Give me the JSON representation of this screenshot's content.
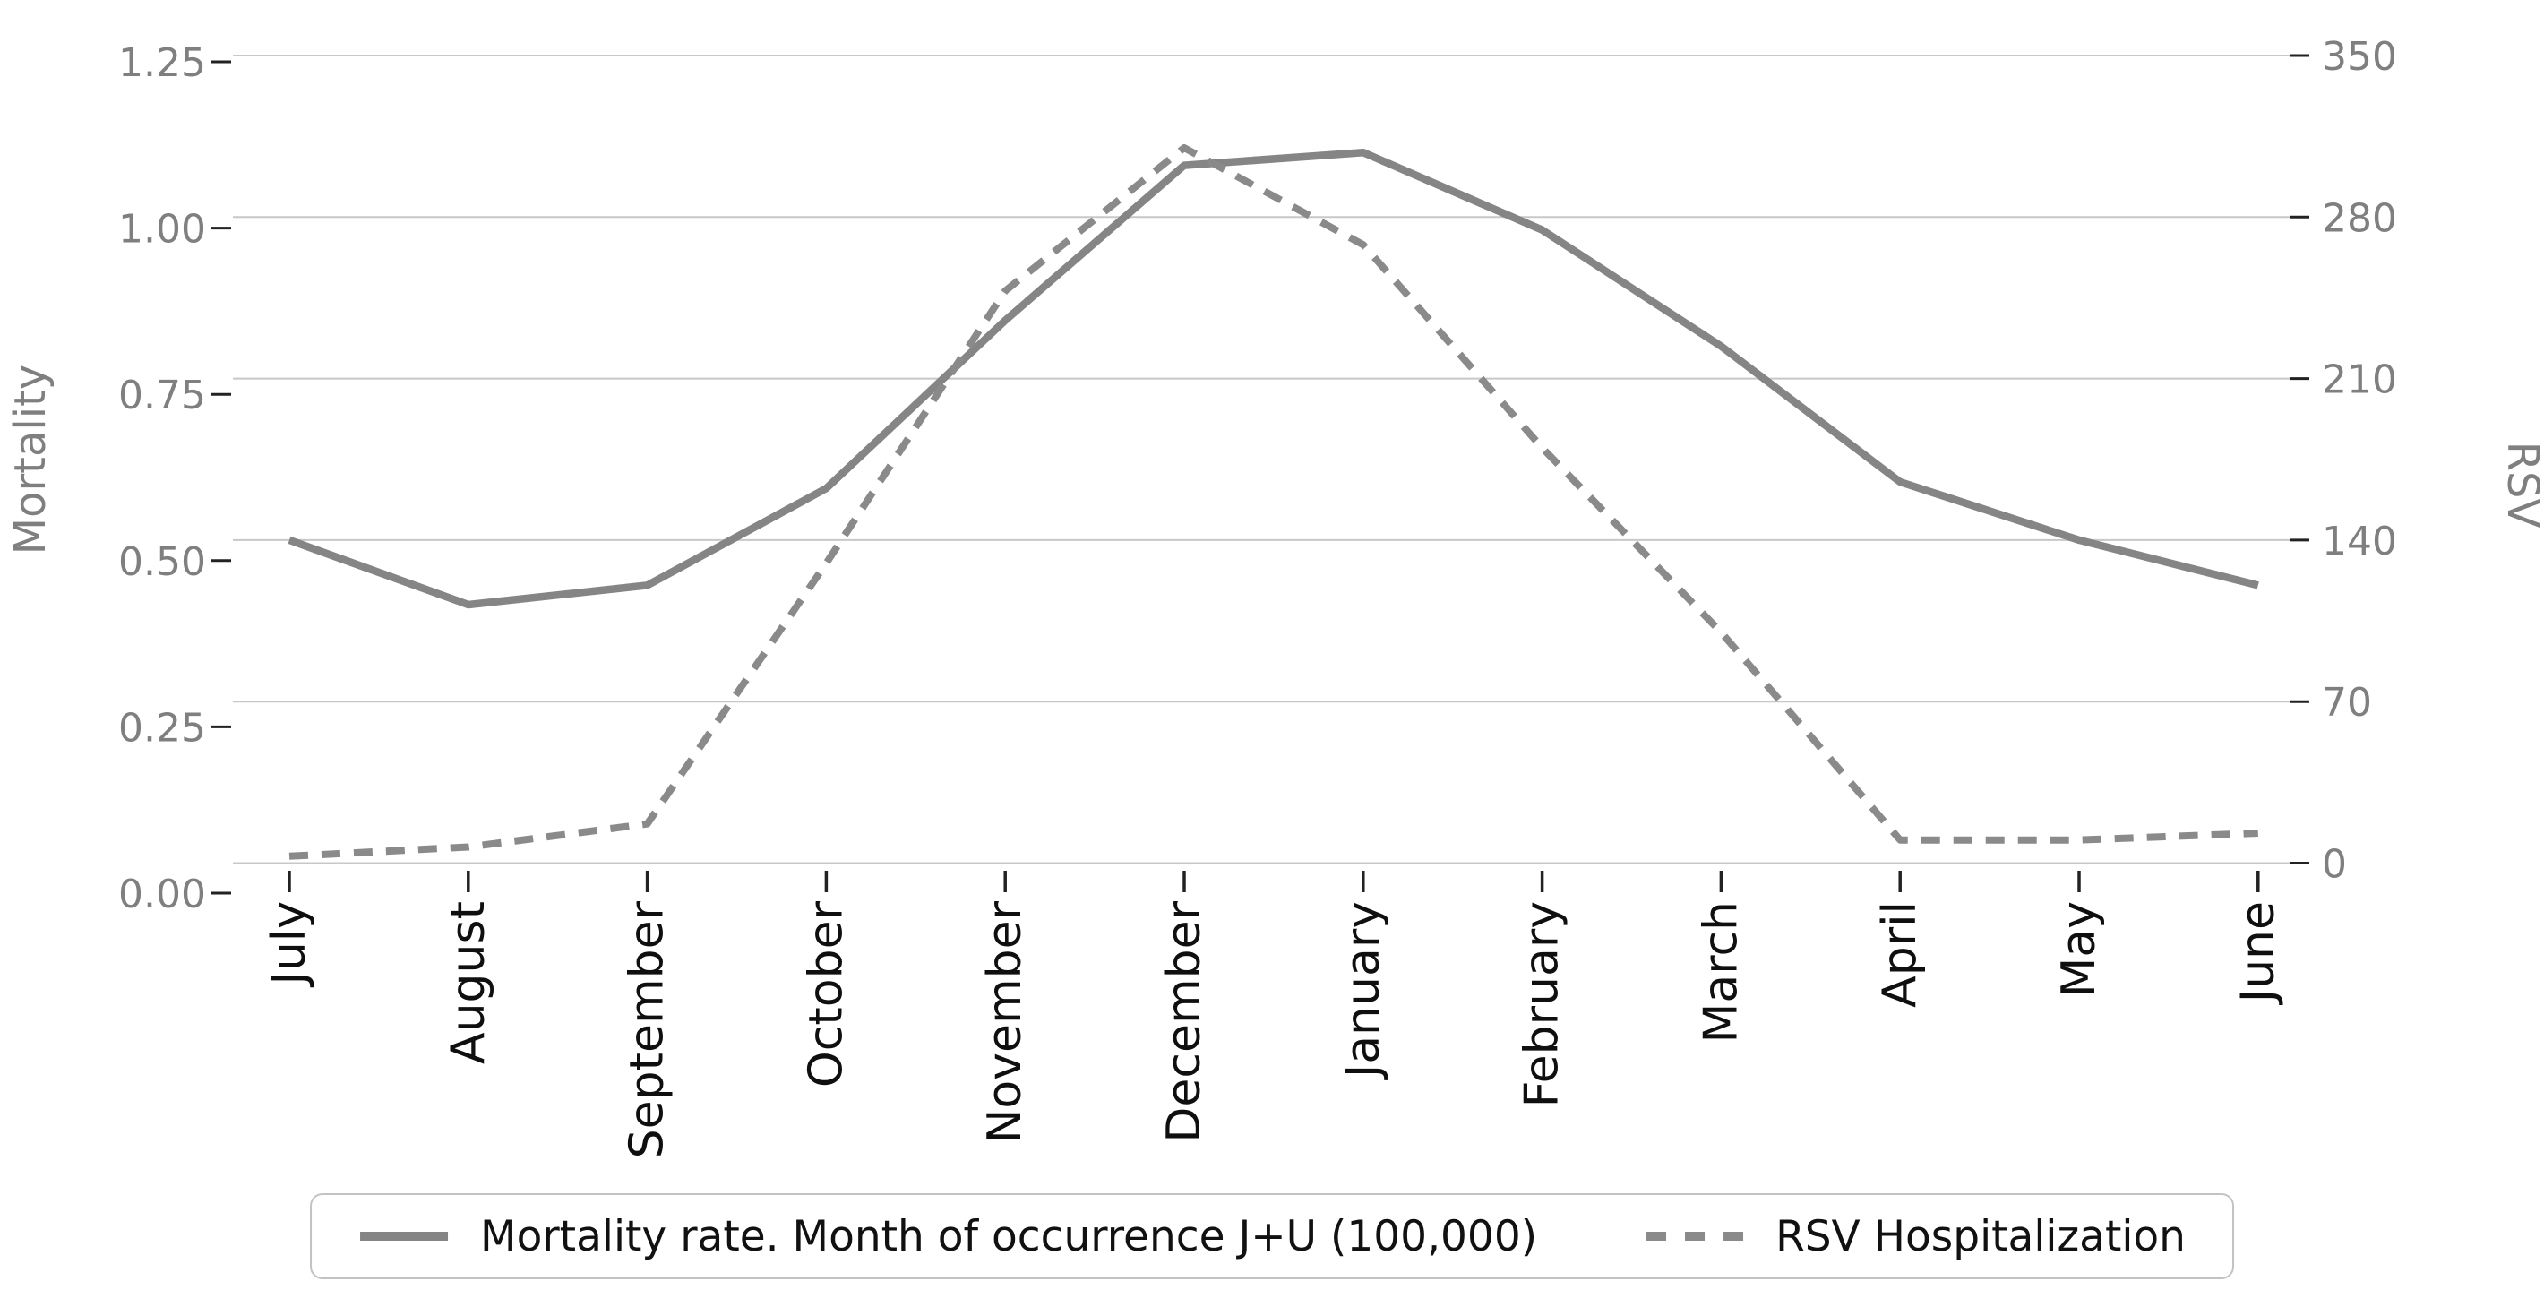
{
  "chart_data": {
    "type": "line",
    "title": "",
    "categories": [
      "July",
      "August",
      "September",
      "October",
      "November",
      "December",
      "January",
      "February",
      "March",
      "April",
      "May",
      "June"
    ],
    "series": [
      {
        "name": "Mortality rate. Month of occurrence J+U (100,000)",
        "axis": "left",
        "line_style": "solid",
        "color": "#858585",
        "values": [
          0.5,
          0.4,
          0.43,
          0.58,
          0.84,
          1.08,
          1.1,
          0.98,
          0.8,
          0.59,
          0.5,
          0.43
        ]
      },
      {
        "name": "RSV Hospitalization",
        "axis": "right",
        "line_style": "dashed",
        "color": "#8a8a8a",
        "values": [
          3,
          7,
          17,
          130,
          248,
          310,
          268,
          180,
          100,
          10,
          10,
          13
        ]
      }
    ],
    "left_axis": {
      "label": "Mortality",
      "tick_labels": [
        "1.25",
        "1.00",
        "0.75",
        "0.50",
        "0.25",
        "0.00"
      ],
      "range": [
        0,
        1.25
      ]
    },
    "right_axis": {
      "label": "RSV",
      "tick_labels": [
        "350",
        "280",
        "210",
        "140",
        "70",
        "0"
      ],
      "range": [
        0,
        350
      ]
    },
    "x_axis": {
      "tick_label_rotation": -90
    },
    "grid": true,
    "legend_position": "bottom"
  },
  "colors": {
    "background": "#ffffff",
    "grid": "#c8c8c8",
    "tick_mark": "#222222",
    "axis_number_text": "#7f7f7f",
    "axis_title_text": "#7f7f7f",
    "month_text": "#0f0f0f",
    "legend_border": "#c3c3c3",
    "mortality_line": "#858585",
    "rsv_line": "#8a8a8a"
  }
}
